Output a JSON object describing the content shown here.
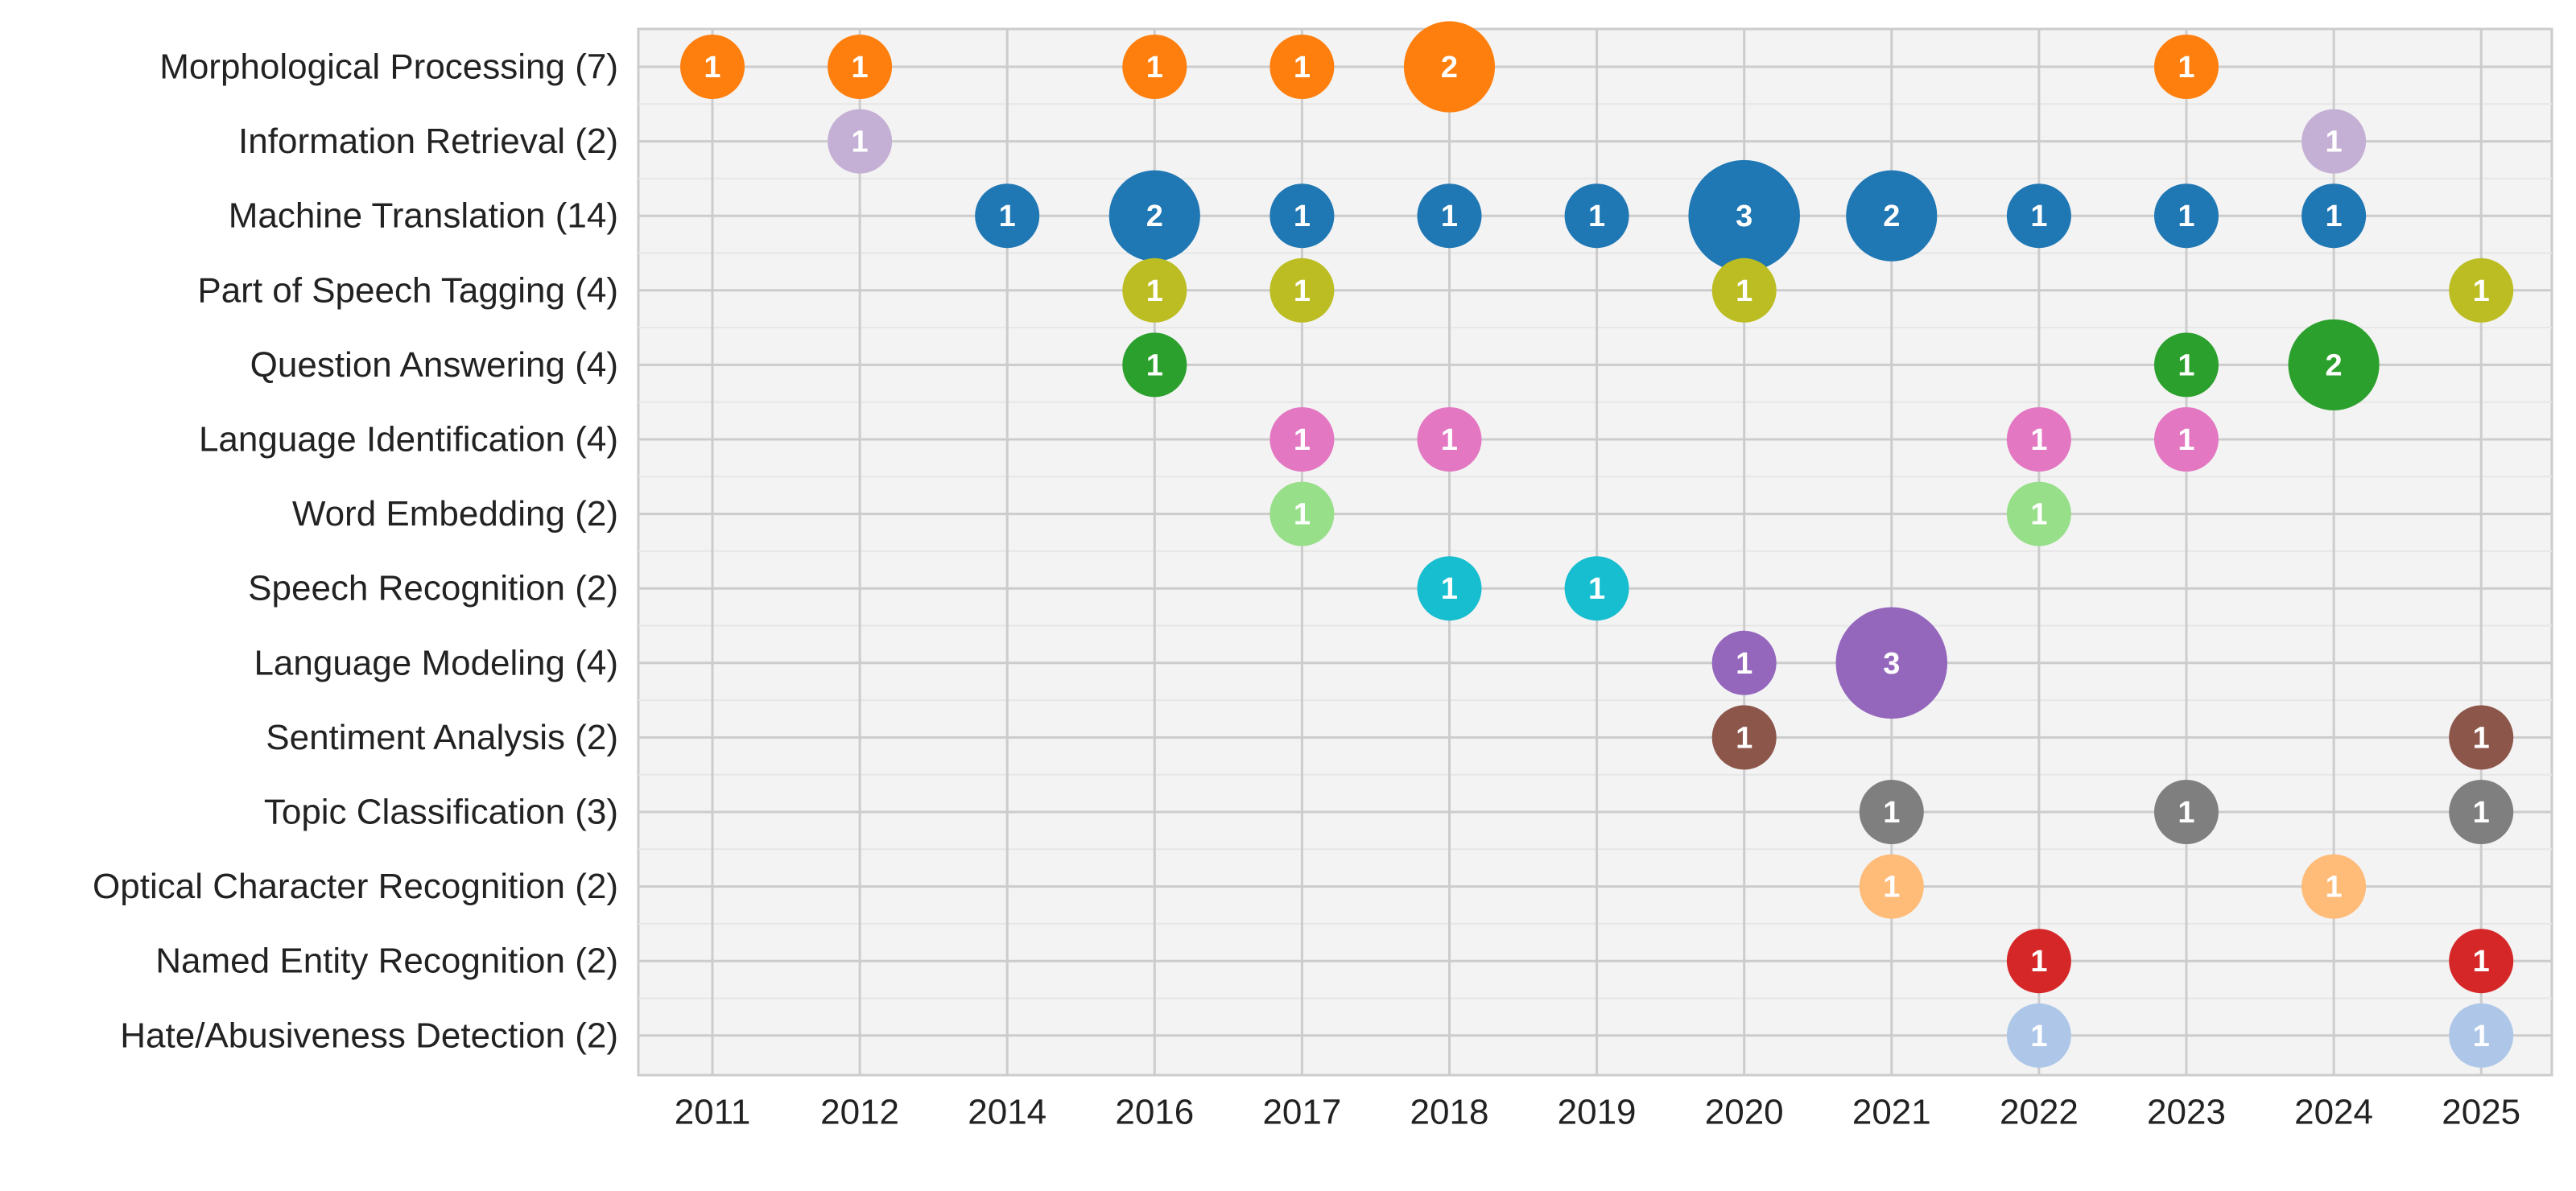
{
  "chart_data": {
    "type": "scatter",
    "subtype": "bubble-timeline",
    "title": "",
    "xlabel": "",
    "ylabel": "",
    "x_categories": [
      "2011",
      "2012",
      "2014",
      "2016",
      "2017",
      "2018",
      "2019",
      "2020",
      "2021",
      "2022",
      "2023",
      "2024",
      "2025"
    ],
    "grid": true,
    "legend": "none",
    "colors": {
      "plot_background": "#f3f3f3",
      "gridline": "#cccccc",
      "bubble_text": "#ffffff"
    },
    "series": [
      {
        "label": "Morphological Processing (7)",
        "color": "#ff7f0e",
        "points": [
          {
            "x": "2011",
            "v": 1
          },
          {
            "x": "2012",
            "v": 1
          },
          {
            "x": "2016",
            "v": 1
          },
          {
            "x": "2017",
            "v": 1
          },
          {
            "x": "2018",
            "v": 2
          },
          {
            "x": "2023",
            "v": 1
          }
        ]
      },
      {
        "label": "Information Retrieval (2)",
        "color": "#c5b0d5",
        "points": [
          {
            "x": "2012",
            "v": 1
          },
          {
            "x": "2024",
            "v": 1
          }
        ]
      },
      {
        "label": "Machine Translation (14)",
        "color": "#1f77b4",
        "points": [
          {
            "x": "2014",
            "v": 1
          },
          {
            "x": "2016",
            "v": 2
          },
          {
            "x": "2017",
            "v": 1
          },
          {
            "x": "2018",
            "v": 1
          },
          {
            "x": "2019",
            "v": 1
          },
          {
            "x": "2020",
            "v": 3
          },
          {
            "x": "2021",
            "v": 2
          },
          {
            "x": "2022",
            "v": 1
          },
          {
            "x": "2023",
            "v": 1
          },
          {
            "x": "2024",
            "v": 1
          }
        ]
      },
      {
        "label": "Part of Speech Tagging (4)",
        "color": "#bcbd22",
        "points": [
          {
            "x": "2016",
            "v": 1
          },
          {
            "x": "2017",
            "v": 1
          },
          {
            "x": "2020",
            "v": 1
          },
          {
            "x": "2025",
            "v": 1
          }
        ]
      },
      {
        "label": "Question Answering (4)",
        "color": "#2ca02c",
        "points": [
          {
            "x": "2016",
            "v": 1
          },
          {
            "x": "2023",
            "v": 1
          },
          {
            "x": "2024",
            "v": 2
          }
        ]
      },
      {
        "label": "Language Identification (4)",
        "color": "#e377c2",
        "points": [
          {
            "x": "2017",
            "v": 1
          },
          {
            "x": "2018",
            "v": 1
          },
          {
            "x": "2022",
            "v": 1
          },
          {
            "x": "2023",
            "v": 1
          }
        ]
      },
      {
        "label": "Word Embedding (2)",
        "color": "#98df8a",
        "points": [
          {
            "x": "2017",
            "v": 1
          },
          {
            "x": "2022",
            "v": 1
          }
        ]
      },
      {
        "label": "Speech Recognition (2)",
        "color": "#17becf",
        "points": [
          {
            "x": "2018",
            "v": 1
          },
          {
            "x": "2019",
            "v": 1
          }
        ]
      },
      {
        "label": "Language Modeling (4)",
        "color": "#9467bd",
        "points": [
          {
            "x": "2020",
            "v": 1
          },
          {
            "x": "2021",
            "v": 3
          }
        ]
      },
      {
        "label": "Sentiment Analysis (2)",
        "color": "#8c564b",
        "points": [
          {
            "x": "2020",
            "v": 1
          },
          {
            "x": "2025",
            "v": 1
          }
        ]
      },
      {
        "label": "Topic Classification (3)",
        "color": "#7f7f7f",
        "points": [
          {
            "x": "2021",
            "v": 1
          },
          {
            "x": "2023",
            "v": 1
          },
          {
            "x": "2025",
            "v": 1
          }
        ]
      },
      {
        "label": "Optical Character Recognition (2)",
        "color": "#ffbb78",
        "points": [
          {
            "x": "2021",
            "v": 1
          },
          {
            "x": "2024",
            "v": 1
          }
        ]
      },
      {
        "label": "Named Entity Recognition (2)",
        "color": "#d62728",
        "points": [
          {
            "x": "2022",
            "v": 1
          },
          {
            "x": "2025",
            "v": 1
          }
        ]
      },
      {
        "label": "Hate/Abusiveness Detection (2)",
        "color": "#aec7e8",
        "points": [
          {
            "x": "2022",
            "v": 1
          },
          {
            "x": "2025",
            "v": 1
          }
        ]
      }
    ]
  }
}
